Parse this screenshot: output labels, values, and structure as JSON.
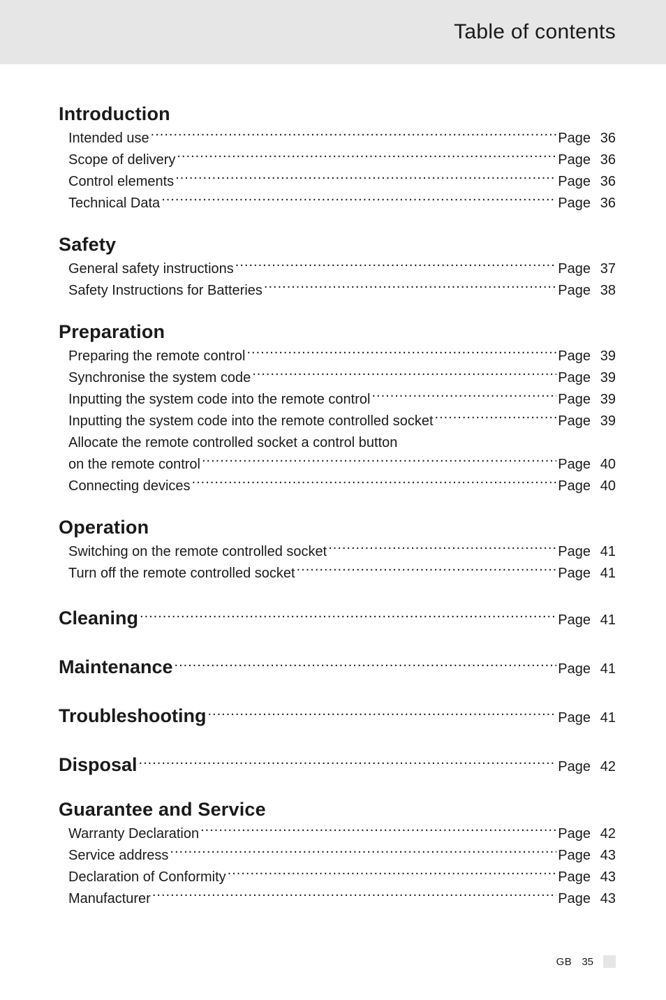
{
  "colors": {
    "header_bg": "#e6e6e6",
    "text": "#1a1a1a",
    "page_bg": "#ffffff",
    "footer_square": "#e6e6e6"
  },
  "typography": {
    "heading_fontsize_pt": 20,
    "body_fontsize_pt": 15,
    "header_title_fontsize_pt": 22,
    "heading_weight": 700,
    "body_weight": 300
  },
  "header": {
    "title": "Table of contents"
  },
  "page_word": "Page",
  "sections": [
    {
      "heading": "Introduction",
      "items": [
        {
          "label": "Intended use",
          "page": 36
        },
        {
          "label": "Scope of delivery",
          "page": 36
        },
        {
          "label": "Control elements",
          "page": 36
        },
        {
          "label": "Technical Data",
          "page": 36
        }
      ]
    },
    {
      "heading": "Safety",
      "items": [
        {
          "label": "General safety instructions",
          "page": 37
        },
        {
          "label": "Safety Instructions for Batteries",
          "page": 38
        }
      ]
    },
    {
      "heading": "Preparation",
      "items": [
        {
          "label": "Preparing the remote control",
          "page": 39
        },
        {
          "label": "Synchronise the system code",
          "page": 39
        },
        {
          "label": "Inputting the system code into the remote control",
          "page": 39
        },
        {
          "label": "Inputting the system code into the remote controlled socket",
          "page": 39
        },
        {
          "label": "Allocate the remote controlled socket a control button",
          "cont": "on the remote control",
          "page": 40
        },
        {
          "label": "Connecting devices",
          "page": 40
        }
      ]
    },
    {
      "heading": "Operation",
      "items": [
        {
          "label": "Switching on the remote controlled socket",
          "page": 41
        },
        {
          "label": "Turn off the remote controlled socket",
          "page": 41
        }
      ]
    },
    {
      "heading_inline": "Cleaning",
      "page": 41
    },
    {
      "heading_inline": "Maintenance",
      "page": 41
    },
    {
      "heading_inline": "Troubleshooting",
      "page": 41
    },
    {
      "heading_inline": "Disposal",
      "page": 42
    },
    {
      "heading": "Guarantee and Service",
      "items": [
        {
          "label": "Warranty Declaration",
          "page": 42
        },
        {
          "label": "Service address",
          "page": 43
        },
        {
          "label": "Declaration of Conformity",
          "page": 43
        },
        {
          "label": "Manufacturer",
          "page": 43
        }
      ]
    }
  ],
  "footer": {
    "country": "GB",
    "page_number": 35
  }
}
